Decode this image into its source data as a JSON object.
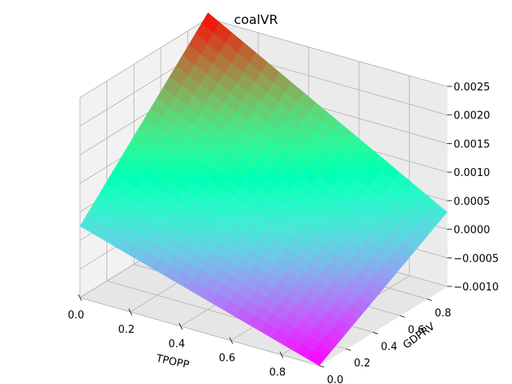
{
  "chart_data": {
    "type": "surface",
    "title": "coalVR",
    "xlabel": "TPOPP",
    "ylabel": "GDPRV",
    "zlabel": "",
    "x_ticks": [
      "0.0",
      "0.2",
      "0.4",
      "0.6",
      "0.8"
    ],
    "y_ticks": [
      "0.0",
      "0.2",
      "0.4",
      "0.6",
      "0.8"
    ],
    "z_ticks": [
      "−0.0010",
      "−0.0005",
      "0.0000",
      "0.0005",
      "0.0010",
      "0.0015",
      "0.0020",
      "0.0025"
    ],
    "x_range": [
      0,
      0.95
    ],
    "y_range": [
      0,
      0.95
    ],
    "z_range": [
      -0.001,
      0.0025
    ],
    "grid": true,
    "colormap": "rainbow",
    "surface_corners": [
      {
        "x": 0,
        "y": 0,
        "z": 0.00025
      },
      {
        "x": 0.95,
        "y": 0,
        "z": -0.001
      },
      {
        "x": 0.95,
        "y": 0.95,
        "z": 0.0003
      },
      {
        "x": 0,
        "y": 0.95,
        "z": 0.0026
      }
    ],
    "grid_cells": 20
  }
}
